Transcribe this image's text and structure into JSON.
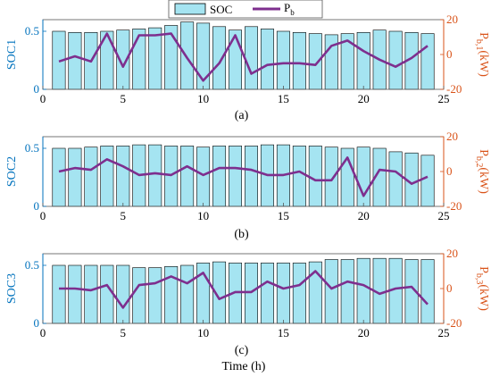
{
  "legend": {
    "bar_label": "SOC",
    "line_label": "P",
    "line_label_sub": "b"
  },
  "colors": {
    "bar_fill": "#a5e4f1",
    "bar_stroke": "#000000",
    "line": "#7e2f8e",
    "left_axis": "#0072bd",
    "right_axis": "#d95319",
    "frame": "#555555"
  },
  "shared_xlabel": "Time (h)",
  "chart_data": [
    {
      "type": "bar",
      "panel_label": "(a)",
      "ylabel": "SOC1",
      "y2label": "P",
      "y2label_sub": "b,1",
      "y2label_unit": "(kW)",
      "x": [
        1,
        2,
        3,
        4,
        5,
        6,
        7,
        8,
        9,
        10,
        11,
        12,
        13,
        14,
        15,
        16,
        17,
        18,
        19,
        20,
        21,
        22,
        23,
        24
      ],
      "xlim": [
        0,
        25
      ],
      "xticks": [
        "0",
        "5",
        "10",
        "15",
        "20",
        "25"
      ],
      "ylim": [
        0,
        0.6
      ],
      "yticks": [
        "0",
        "0.5"
      ],
      "y2lim": [
        -20,
        20
      ],
      "y2ticks": [
        "-20",
        "0",
        "20"
      ],
      "series": [
        {
          "axis": "left",
          "values": [
            0.5,
            0.49,
            0.49,
            0.5,
            0.51,
            0.52,
            0.53,
            0.55,
            0.58,
            0.57,
            0.54,
            0.51,
            0.54,
            0.52,
            0.5,
            0.49,
            0.48,
            0.47,
            0.48,
            0.49,
            0.51,
            0.5,
            0.49,
            0.48
          ]
        },
        {
          "axis": "right",
          "values": [
            -4,
            -1,
            -4,
            12,
            -7,
            11,
            11,
            12,
            -2,
            -15,
            -5,
            11,
            -11,
            -6,
            -5,
            -5,
            -6,
            5,
            8,
            2,
            -3,
            -7,
            -2,
            5
          ]
        }
      ]
    },
    {
      "type": "bar",
      "panel_label": "(b)",
      "ylabel": "SOC2",
      "y2label": "P",
      "y2label_sub": "b,2",
      "y2label_unit": "(kW)",
      "x": [
        1,
        2,
        3,
        4,
        5,
        6,
        7,
        8,
        9,
        10,
        11,
        12,
        13,
        14,
        15,
        16,
        17,
        18,
        19,
        20,
        21,
        22,
        23,
        24
      ],
      "xlim": [
        0,
        25
      ],
      "xticks": [
        "0",
        "5",
        "10",
        "15",
        "20",
        "25"
      ],
      "ylim": [
        0,
        0.6
      ],
      "yticks": [
        "0",
        "0.5"
      ],
      "y2lim": [
        -20,
        20
      ],
      "y2ticks": [
        "-20",
        "0",
        "20"
      ],
      "series": [
        {
          "axis": "left",
          "values": [
            0.5,
            0.5,
            0.51,
            0.52,
            0.52,
            0.53,
            0.53,
            0.52,
            0.52,
            0.51,
            0.52,
            0.52,
            0.52,
            0.53,
            0.53,
            0.52,
            0.52,
            0.51,
            0.5,
            0.51,
            0.5,
            0.47,
            0.46,
            0.44
          ]
        },
        {
          "axis": "right",
          "values": [
            0,
            2,
            1,
            7,
            3,
            -2,
            -1,
            -2,
            3,
            -2,
            2,
            2,
            1,
            -2,
            -2,
            0,
            -5,
            -5,
            8,
            -14,
            1,
            0,
            -7,
            -3
          ]
        }
      ]
    },
    {
      "type": "bar",
      "panel_label": "(c)",
      "ylabel": "SOC3",
      "y2label": "P",
      "y2label_sub": "b,3",
      "y2label_unit": "(kW)",
      "x": [
        1,
        2,
        3,
        4,
        5,
        6,
        7,
        8,
        9,
        10,
        11,
        12,
        13,
        14,
        15,
        16,
        17,
        18,
        19,
        20,
        21,
        22,
        23,
        24
      ],
      "xlim": [
        0,
        25
      ],
      "xticks": [
        "0",
        "5",
        "10",
        "15",
        "20",
        "25"
      ],
      "ylim": [
        0,
        0.6
      ],
      "yticks": [
        "0",
        "0.5"
      ],
      "y2lim": [
        -20,
        20
      ],
      "y2ticks": [
        "-20",
        "0",
        "20"
      ],
      "series": [
        {
          "axis": "left",
          "values": [
            0.5,
            0.5,
            0.5,
            0.5,
            0.5,
            0.48,
            0.48,
            0.49,
            0.5,
            0.52,
            0.53,
            0.52,
            0.52,
            0.52,
            0.52,
            0.52,
            0.53,
            0.55,
            0.55,
            0.56,
            0.56,
            0.56,
            0.55,
            0.55
          ]
        },
        {
          "axis": "right",
          "values": [
            0,
            0,
            -1,
            2,
            -11,
            2,
            3,
            7,
            3,
            9,
            -6,
            -2,
            -2,
            4,
            0,
            2,
            10,
            0,
            4,
            2,
            -3,
            0,
            1,
            -9
          ]
        }
      ]
    }
  ]
}
